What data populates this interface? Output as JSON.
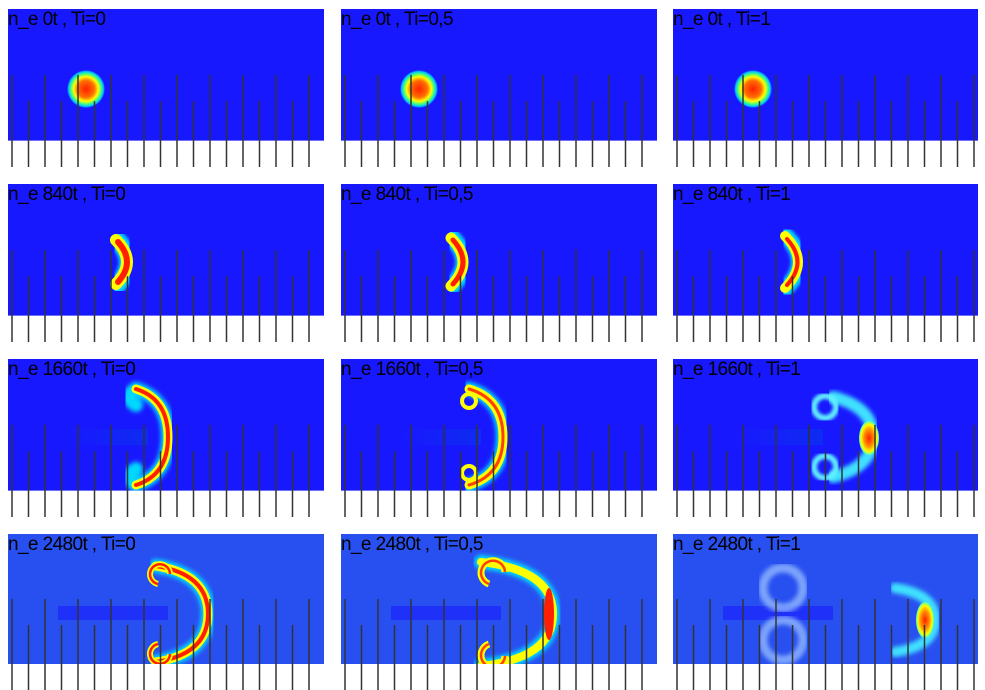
{
  "colors": {
    "background": "#1818ff",
    "mid": "#00a0ff",
    "cyan": "#00e0ff",
    "green": "#40ff80",
    "yellow": "#ffff00",
    "red": "#ff2000",
    "dark_red": "#c00000"
  },
  "panels": [
    {
      "label": "n_e 0t , Ti=0"
    },
    {
      "label": "n_e 0t , Ti=0,5"
    },
    {
      "label": "n_e 0t , Ti=1"
    },
    {
      "label": "n_e 840t , Ti=0"
    },
    {
      "label": "n_e 840t , Ti=0,5"
    },
    {
      "label": "n_e 840t , Ti=1"
    },
    {
      "label": "n_e 1660t , Ti=0"
    },
    {
      "label": "n_e 1660t , Ti=0,5"
    },
    {
      "label": "n_e 1660t , Ti=1"
    },
    {
      "label": "n_e 2480t , Ti=0"
    },
    {
      "label": "n_e 2480t , Ti=0,5"
    },
    {
      "label": "n_e 2480t , Ti=1"
    }
  ]
}
